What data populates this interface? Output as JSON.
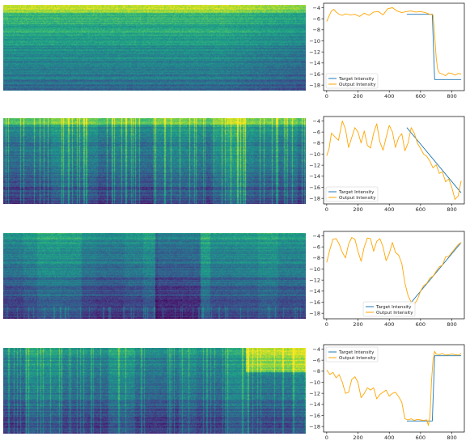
{
  "colors": {
    "target": "#1f77b4",
    "output": "#ffa500",
    "spectrogram_colormap": "viridis"
  },
  "rows": [
    {
      "spectrogram": {
        "character": "dense-left fading-right"
      },
      "chart_data": {
        "type": "line",
        "xlim": [
          -20,
          880
        ],
        "ylim": [
          -19,
          -3.2
        ],
        "xticks": [
          0,
          200,
          400,
          600,
          800
        ],
        "yticks": [
          -4,
          -6,
          -8,
          -10,
          -12,
          -14,
          -16,
          -18
        ],
        "legend_position": "bottom-left",
        "series": [
          {
            "name": "Target Intensity",
            "color": "#1f77b4",
            "x": [
              512,
              675,
              675,
              690,
              690,
              860
            ],
            "y": [
              -5.2,
              -5.2,
              -5.2,
              -17,
              -17,
              -17
            ]
          },
          {
            "name": "Output Intensity",
            "color": "#ffa500",
            "x": [
              0,
              15,
              30,
              45,
              60,
              80,
              100,
              120,
              150,
              180,
              210,
              240,
              270,
              300,
              330,
              360,
              390,
              420,
              450,
              480,
              510,
              540,
              570,
              600,
              630,
              660,
              680,
              690,
              700,
              710,
              720,
              740,
              760,
              780,
              800,
              820,
              840,
              860
            ],
            "y": [
              -6.5,
              -5.5,
              -4.6,
              -4.3,
              -4.8,
              -5.2,
              -5.4,
              -5.1,
              -5.3,
              -5.2,
              -5.6,
              -5.0,
              -5.4,
              -4.8,
              -4.7,
              -5.3,
              -4.2,
              -4.0,
              -4.6,
              -4.9,
              -4.7,
              -4.6,
              -4.8,
              -4.7,
              -4.9,
              -5.2,
              -5.3,
              -9.0,
              -13.0,
              -15.2,
              -15.8,
              -16.0,
              -16.3,
              -15.8,
              -15.9,
              -16.2,
              -15.9,
              -16.0
            ]
          }
        ]
      }
    },
    {
      "spectrogram": {
        "character": "vertical-bands"
      },
      "chart_data": {
        "type": "line",
        "xlim": [
          -20,
          880
        ],
        "ylim": [
          -19,
          -3.2
        ],
        "xticks": [
          0,
          200,
          400,
          600,
          800
        ],
        "yticks": [
          -4,
          -6,
          -8,
          -10,
          -12,
          -14,
          -16,
          -18
        ],
        "legend_position": "bottom-left",
        "series": [
          {
            "name": "Target Intensity",
            "color": "#1f77b4",
            "x": [
              512,
              860
            ],
            "y": [
              -5.2,
              -17
            ]
          },
          {
            "name": "Output Intensity",
            "color": "#ffa500",
            "x": [
              0,
              15,
              30,
              50,
              75,
              100,
              120,
              140,
              160,
              180,
              200,
              220,
              240,
              260,
              280,
              300,
              320,
              340,
              360,
              380,
              400,
              420,
              440,
              460,
              480,
              500,
              520,
              540,
              560,
              580,
              600,
              620,
              640,
              660,
              680,
              700,
              720,
              740,
              760,
              780,
              800,
              820,
              840,
              860
            ],
            "y": [
              -10.3,
              -9.0,
              -6.2,
              -6.8,
              -7.5,
              -4.0,
              -5.5,
              -8.8,
              -7.0,
              -5.2,
              -6.0,
              -8.0,
              -5.8,
              -8.4,
              -8.9,
              -6.2,
              -4.5,
              -7.8,
              -9.3,
              -7.0,
              -4.8,
              -6.0,
              -8.8,
              -7.0,
              -6.3,
              -9.4,
              -8.0,
              -5.2,
              -6.2,
              -8.0,
              -9.0,
              -10.0,
              -10.4,
              -11.3,
              -12.5,
              -11.9,
              -13.5,
              -13.2,
              -15.0,
              -14.5,
              -16.0,
              -18.2,
              -17.6,
              -14.8
            ]
          }
        ]
      }
    },
    {
      "spectrogram": {
        "character": "dense-blocks"
      },
      "chart_data": {
        "type": "line",
        "xlim": [
          -20,
          880
        ],
        "ylim": [
          -19,
          -3.2
        ],
        "xticks": [
          0,
          200,
          400,
          600,
          800
        ],
        "yticks": [
          -4,
          -6,
          -8,
          -10,
          -12,
          -14,
          -16,
          -18
        ],
        "legend_position": "bottom-center",
        "series": [
          {
            "name": "Target Intensity",
            "color": "#1f77b4",
            "x": [
              512,
              860
            ],
            "y": [
              -17,
              -5.2
            ]
          },
          {
            "name": "Output Intensity",
            "color": "#ffa500",
            "x": [
              0,
              20,
              40,
              60,
              80,
              100,
              120,
              140,
              160,
              180,
              200,
              220,
              240,
              260,
              280,
              300,
              320,
              340,
              360,
              380,
              400,
              420,
              440,
              460,
              480,
              500,
              520,
              540,
              560,
              580,
              600,
              620,
              640,
              660,
              680,
              700,
              720,
              740,
              760,
              780,
              800,
              820,
              840,
              860
            ],
            "y": [
              -8.8,
              -6.5,
              -4.6,
              -4.5,
              -5.5,
              -7.0,
              -8.0,
              -5.5,
              -4.3,
              -4.6,
              -6.8,
              -8.6,
              -6.0,
              -4.4,
              -4.5,
              -6.8,
              -5.0,
              -4.5,
              -6.0,
              -8.5,
              -7.2,
              -5.2,
              -7.0,
              -7.5,
              -9.0,
              -12.5,
              -14.8,
              -16.0,
              -16.4,
              -15.5,
              -14.0,
              -13.0,
              -12.6,
              -11.6,
              -11.3,
              -10.4,
              -9.6,
              -9.3,
              -7.8,
              -7.7,
              -7.0,
              -6.3,
              -5.6,
              -5.2
            ]
          }
        ]
      }
    },
    {
      "spectrogram": {
        "character": "dense-left bright-band-right"
      },
      "chart_data": {
        "type": "line",
        "xlim": [
          -20,
          880
        ],
        "ylim": [
          -19,
          -3.2
        ],
        "xticks": [
          0,
          200,
          400,
          600,
          800
        ],
        "yticks": [
          -4,
          -6,
          -8,
          -10,
          -12,
          -14,
          -16,
          -18
        ],
        "legend_position": "top-left",
        "series": [
          {
            "name": "Target Intensity",
            "color": "#1f77b4",
            "x": [
              512,
              675,
              675,
              690,
              690,
              860
            ],
            "y": [
              -17,
              -17,
              -17,
              -5.2,
              -5.2,
              -5.2
            ]
          },
          {
            "name": "Output Intensity",
            "color": "#ffa500",
            "x": [
              0,
              20,
              40,
              60,
              80,
              100,
              120,
              140,
              160,
              180,
              200,
              220,
              240,
              260,
              280,
              300,
              320,
              340,
              360,
              380,
              400,
              420,
              440,
              460,
              480,
              500,
              520,
              540,
              560,
              580,
              600,
              620,
              640,
              650,
              660,
              670,
              680,
              690,
              700,
              720,
              740,
              760,
              780,
              800,
              820,
              840,
              860
            ],
            "y": [
              -7.8,
              -8.6,
              -8.2,
              -9.2,
              -8.6,
              -10.0,
              -12.0,
              -11.8,
              -9.5,
              -9.0,
              -10.0,
              -12.8,
              -12.0,
              -11.0,
              -11.4,
              -11.0,
              -13.0,
              -12.2,
              -11.8,
              -11.4,
              -12.5,
              -12.0,
              -11.8,
              -12.6,
              -13.6,
              -16.6,
              -16.8,
              -16.6,
              -16.9,
              -16.7,
              -16.8,
              -16.9,
              -16.8,
              -17.8,
              -16.2,
              -9.8,
              -6.0,
              -4.4,
              -4.9,
              -5.0,
              -4.8,
              -5.1,
              -5.0,
              -4.9,
              -5.0,
              -5.1,
              -4.8
            ]
          }
        ]
      }
    }
  ]
}
